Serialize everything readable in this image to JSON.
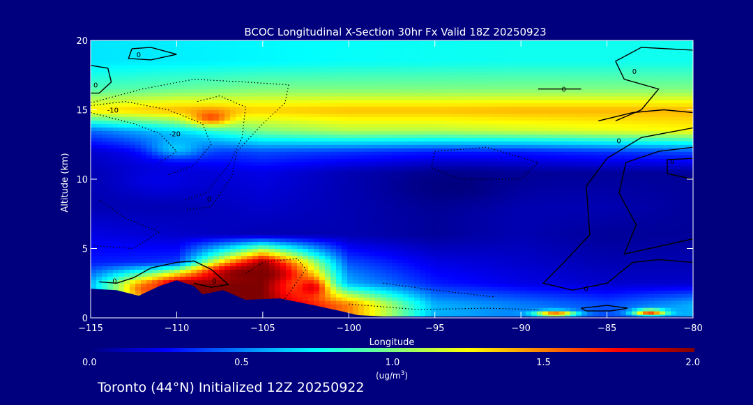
{
  "chart_data": {
    "type": "heatmap",
    "title": "BCOC Longitudinal X-Section 30hr  Fx Valid 18Z 20250923",
    "xlabel": "Longitude",
    "ylabel": "Altitude (km)",
    "xlim": [
      -115,
      -80
    ],
    "ylim": [
      0,
      20
    ],
    "xticks": [
      -115,
      -110,
      -105,
      -100,
      -95,
      -90,
      -85,
      -80
    ],
    "xtick_labels": [
      "−115",
      "−110",
      "−105",
      "−100",
      "−95",
      "−90",
      "−85",
      "−80"
    ],
    "yticks": [
      0,
      5,
      10,
      15,
      20
    ],
    "ytick_labels": [
      "0",
      "5",
      "10",
      "15",
      "20"
    ],
    "colorbar": {
      "min": 0.0,
      "max": 2.0,
      "ticks": [
        "0.0",
        "0.5",
        "1.0",
        "1.5",
        "2.0"
      ],
      "unit_prefix": "(ug/m",
      "unit_exp": "3",
      "unit_suffix": ")",
      "colors": [
        "#00007f",
        "#0000ff",
        "#0080ff",
        "#00ffff",
        "#80ff80",
        "#ffff00",
        "#ff8000",
        "#ff0000",
        "#7f0000"
      ]
    },
    "contour_labels": [
      {
        "text": "0",
        "lon": -115,
        "alt": 16.8
      },
      {
        "text": "-10",
        "lon": -114.2,
        "alt": 15.0
      },
      {
        "text": "-20",
        "lon": -110.6,
        "alt": 13.3
      },
      {
        "text": "0",
        "lon": -112.5,
        "alt": 19.0
      },
      {
        "text": "0",
        "lon": -87.8,
        "alt": 16.5
      },
      {
        "text": "0",
        "lon": -83.7,
        "alt": 17.8
      },
      {
        "text": "0",
        "lon": -84.6,
        "alt": 12.8
      },
      {
        "text": "0",
        "lon": -81.5,
        "alt": 11.3
      },
      {
        "text": "0",
        "lon": -113.9,
        "alt": 2.7
      },
      {
        "text": "0",
        "lon": -108.1,
        "alt": 2.7
      },
      {
        "text": "0",
        "lon": -108.4,
        "alt": 8.6
      },
      {
        "text": "0",
        "lon": -86.5,
        "alt": 2.1
      }
    ],
    "bands": [
      {
        "alt": 18.5,
        "values": [
          0.7,
          0.72,
          0.74,
          0.76,
          0.77,
          0.78,
          0.78,
          0.78
        ]
      },
      {
        "alt": 16.5,
        "values": [
          0.9,
          0.95,
          1.0,
          1.0,
          1.0,
          1.0,
          1.0,
          1.0
        ]
      },
      {
        "alt": 15.0,
        "values": [
          1.3,
          1.4,
          1.35,
          1.38,
          1.38,
          1.4,
          1.4,
          1.4
        ]
      },
      {
        "alt": 13.5,
        "values": [
          0.45,
          0.7,
          1.0,
          1.1,
          1.1,
          1.15,
          1.2,
          1.25
        ]
      },
      {
        "alt": 12.0,
        "values": [
          0.15,
          0.3,
          0.4,
          0.35,
          0.3,
          0.3,
          0.35,
          0.4
        ]
      },
      {
        "alt": 10.5,
        "values": [
          0.1,
          0.15,
          0.2,
          0.1,
          0.05,
          0.05,
          0.05,
          0.05
        ]
      },
      {
        "alt": 8.0,
        "values": [
          0.1,
          0.1,
          0.15,
          0.1,
          0.05,
          0.1,
          0.1,
          0.05
        ]
      },
      {
        "alt": 6.0,
        "values": [
          0.2,
          0.15,
          0.1,
          0.1,
          0.05,
          0.1,
          0.05,
          0.05
        ]
      },
      {
        "alt": 4.0,
        "values": [
          0.3,
          0.35,
          2.0,
          0.4,
          0.2,
          0.15,
          0.1,
          0.1
        ]
      },
      {
        "alt": 2.5,
        "values": [
          0.6,
          2.0,
          2.0,
          0.6,
          0.3,
          0.2,
          0.15,
          0.15
        ]
      },
      {
        "alt": 1.0,
        "values": [
          0.6,
          2.0,
          2.0,
          1.5,
          0.6,
          0.5,
          0.4,
          0.6
        ]
      }
    ],
    "blobs": [
      {
        "lon": -105.8,
        "alt": 3.2,
        "rlon": 3.4,
        "ralt": 0.9,
        "value": 2.0
      },
      {
        "lon": -102.2,
        "alt": 2.2,
        "rlon": 1.2,
        "ralt": 1.0,
        "value": 1.8
      },
      {
        "lon": -111.5,
        "alt": 2.1,
        "rlon": 1.3,
        "ralt": 0.5,
        "value": 1.6
      },
      {
        "lon": -108.0,
        "alt": 14.5,
        "rlon": 1.5,
        "ralt": 0.7,
        "value": 1.6
      },
      {
        "lon": -88.0,
        "alt": 0.3,
        "rlon": 1.5,
        "ralt": 0.3,
        "value": 1.6
      },
      {
        "lon": -82.5,
        "alt": 0.4,
        "rlon": 1.2,
        "ralt": 0.3,
        "value": 1.6
      },
      {
        "lon": -110.0,
        "alt": 12.3,
        "rlon": 2.0,
        "ralt": 1.0,
        "value": 0.65
      },
      {
        "lon": -94.0,
        "alt": 9.5,
        "rlon": 4.0,
        "ralt": 1.5,
        "value": 0.0
      },
      {
        "lon": -111.0,
        "alt": 10.0,
        "rlon": 3.0,
        "ralt": 1.5,
        "value": 0.2
      }
    ],
    "terrain": [
      [
        -115,
        2.1
      ],
      [
        -113.5,
        2.0
      ],
      [
        -112.2,
        1.6
      ],
      [
        -111.0,
        2.3
      ],
      [
        -110.0,
        2.7
      ],
      [
        -109.0,
        2.3
      ],
      [
        -108.5,
        1.7
      ],
      [
        -107.3,
        2.0
      ],
      [
        -106.0,
        1.3
      ],
      [
        -104.0,
        1.4
      ],
      [
        -102.0,
        0.9
      ],
      [
        -100.5,
        0.5
      ],
      [
        -99.5,
        0.2
      ],
      [
        -98.0,
        0.1
      ],
      [
        -80,
        0.1
      ]
    ],
    "solid_contours": [
      [
        [
          -115,
          18.2
        ],
        [
          -114.0,
          18.0
        ],
        [
          -113.8,
          17.0
        ],
        [
          -114.5,
          16.2
        ],
        [
          -115,
          16.2
        ]
      ],
      [
        [
          -112.6,
          19.4
        ],
        [
          -111.5,
          19.5
        ],
        [
          -110.0,
          19.0
        ],
        [
          -111.5,
          18.6
        ],
        [
          -112.8,
          18.7
        ],
        [
          -112.6,
          19.4
        ]
      ],
      [
        [
          -89.0,
          16.5
        ],
        [
          -86.5,
          16.5
        ]
      ],
      [
        [
          -85.5,
          14.2
        ],
        [
          -83.5,
          14.8
        ],
        [
          -81.7,
          15.0
        ],
        [
          -80.0,
          14.8
        ]
      ],
      [
        [
          -80.0,
          19.3
        ],
        [
          -83.0,
          19.5
        ],
        [
          -84.5,
          18.5
        ],
        [
          -84.0,
          17.2
        ],
        [
          -82.0,
          16.5
        ],
        [
          -83.0,
          15.0
        ],
        [
          -84.5,
          14.2
        ]
      ],
      [
        [
          -80.0,
          13.7
        ],
        [
          -83.0,
          13.0
        ],
        [
          -85.0,
          11.5
        ],
        [
          -86.2,
          9.5
        ],
        [
          -86.0,
          6.0
        ],
        [
          -87.5,
          4.0
        ],
        [
          -88.7,
          2.5
        ],
        [
          -87.0,
          2.0
        ],
        [
          -85.0,
          2.5
        ],
        [
          -83.5,
          4.0
        ],
        [
          -82.0,
          4.2
        ],
        [
          -80.0,
          4.0
        ]
      ],
      [
        [
          -80.0,
          12.3
        ],
        [
          -82.0,
          12.0
        ],
        [
          -83.9,
          11.2
        ],
        [
          -84.3,
          9.0
        ],
        [
          -83.3,
          6.7
        ],
        [
          -84.0,
          4.6
        ],
        [
          -80.0,
          5.7
        ]
      ],
      [
        [
          -80.0,
          11.5
        ],
        [
          -81.5,
          11.4
        ],
        [
          -81.5,
          10.4
        ],
        [
          -80.0,
          10.0
        ]
      ],
      [
        [
          -114.5,
          2.6
        ],
        [
          -113.5,
          2.5
        ],
        [
          -112.5,
          2.9
        ],
        [
          -111.5,
          3.6
        ],
        [
          -110.0,
          4.0
        ],
        [
          -109.0,
          4.1
        ],
        [
          -108.0,
          3.5
        ],
        [
          -107.0,
          2.4
        ],
        [
          -108.0,
          2.2
        ],
        [
          -109.0,
          2.5
        ]
      ],
      [
        [
          -86.5,
          0.7
        ],
        [
          -85.0,
          0.9
        ],
        [
          -83.8,
          0.7
        ],
        [
          -84.8,
          0.5
        ],
        [
          -86.2,
          0.5
        ],
        [
          -86.5,
          0.7
        ]
      ]
    ],
    "dotted_contours": [
      [
        [
          -115,
          15.5
        ],
        [
          -112.0,
          16.5
        ],
        [
          -109.0,
          17.2
        ],
        [
          -106.0,
          17.0
        ],
        [
          -103.5,
          16.8
        ],
        [
          -103.7,
          15.5
        ],
        [
          -105.0,
          14.0
        ],
        [
          -106.5,
          12.0
        ],
        [
          -106.8,
          10.2
        ],
        [
          -108.0,
          8.0
        ],
        [
          -109.5,
          7.8
        ]
      ],
      [
        [
          -115,
          15.3
        ],
        [
          -113.0,
          15.6
        ],
        [
          -110.5,
          15.0
        ],
        [
          -108.5,
          14.0
        ],
        [
          -108.0,
          12.5
        ],
        [
          -109.0,
          11.0
        ],
        [
          -110.5,
          10.3
        ]
      ],
      [
        [
          -115,
          14.8
        ],
        [
          -112.5,
          14.0
        ],
        [
          -111.0,
          13.3
        ],
        [
          -110.0,
          12.0
        ],
        [
          -111.0,
          11.2
        ]
      ],
      [
        [
          -108.8,
          15.6
        ],
        [
          -107.5,
          16.0
        ],
        [
          -106.0,
          15.2
        ],
        [
          -106.2,
          13.0
        ],
        [
          -107.0,
          11.0
        ],
        [
          -108.3,
          9.0
        ],
        [
          -109.5,
          8.5
        ]
      ],
      [
        [
          -95.0,
          12.0
        ],
        [
          -92.0,
          12.3
        ],
        [
          -89.0,
          11.2
        ],
        [
          -90.0,
          10.0
        ],
        [
          -93.5,
          10.0
        ],
        [
          -95.2,
          10.8
        ],
        [
          -95.0,
          12.0
        ]
      ],
      [
        [
          -114.5,
          8.5
        ],
        [
          -113.0,
          7.2
        ],
        [
          -111.0,
          6.2
        ],
        [
          -112.5,
          5.0
        ],
        [
          -114.8,
          5.2
        ]
      ],
      [
        [
          -103.8,
          1.2
        ],
        [
          -102.5,
          3.5
        ],
        [
          -103.0,
          4.3
        ],
        [
          -105.0,
          4.0
        ],
        [
          -106.0,
          3.2
        ]
      ],
      [
        [
          -100.0,
          1.0
        ],
        [
          -96.0,
          0.6
        ],
        [
          -92.0,
          0.7
        ],
        [
          -89.0,
          0.6
        ]
      ],
      [
        [
          -98.0,
          2.5
        ],
        [
          -95.0,
          2.0
        ],
        [
          -91.5,
          1.5
        ]
      ]
    ],
    "subtitle": "Toronto (44°N) Initialized 12Z 20250922"
  }
}
